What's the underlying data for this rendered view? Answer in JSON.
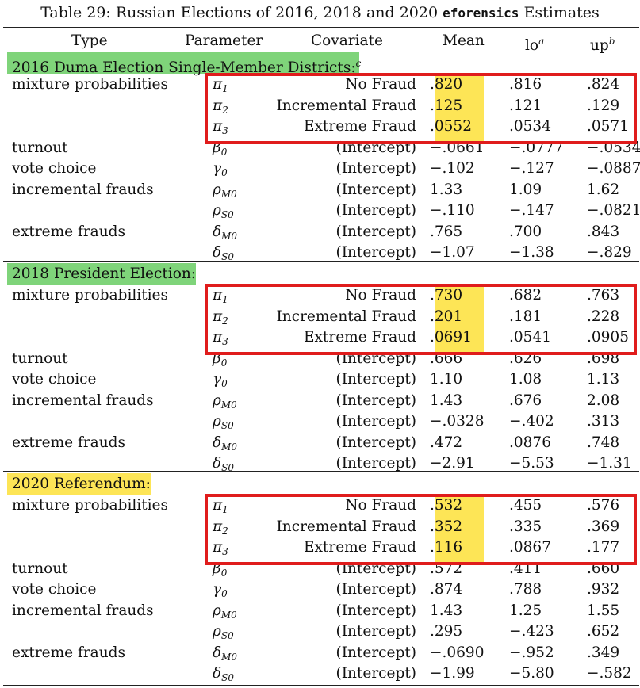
{
  "caption": {
    "prefix": "Table 29: Russian Elections of 2016, 2018 and 2020",
    "code": "eforensics",
    "suffix": "Estimates"
  },
  "headers": {
    "type": "Type",
    "parameter": "Parameter",
    "covariate": "Covariate",
    "mean": "Mean",
    "lo": "lo",
    "lo_sup": "a",
    "up": "up",
    "up_sup": "b"
  },
  "sections": [
    {
      "title": "2016 Duma Election Single-Member Districts:",
      "title_sup": "c",
      "highlight_color": "#7fd47a",
      "rows": [
        {
          "type": "mixture probabilities",
          "param": "π",
          "sub": "1",
          "cov": "No Fraud",
          "mean": ".820",
          "lo": ".816",
          "up": ".824"
        },
        {
          "type": "",
          "param": "π",
          "sub": "2",
          "cov": "Incremental Fraud",
          "mean": ".125",
          "lo": ".121",
          "up": ".129"
        },
        {
          "type": "",
          "param": "π",
          "sub": "3",
          "cov": "Extreme Fraud",
          "mean": ".0552",
          "lo": ".0534",
          "up": ".0571"
        },
        {
          "type": "turnout",
          "param": "β",
          "sub": "0",
          "cov": "(Intercept)",
          "mean": "−.0661",
          "lo": "−.0777",
          "up": "−.0534"
        },
        {
          "type": "vote choice",
          "param": "γ",
          "sub": "0",
          "cov": "(Intercept)",
          "mean": "−.102",
          "lo": "−.127",
          "up": "−.0887"
        },
        {
          "type": "incremental frauds",
          "param": "ρ",
          "sub": "M0",
          "cov": "(Intercept)",
          "mean": "1.33",
          "lo": "1.09",
          "up": "1.62"
        },
        {
          "type": "",
          "param": "ρ",
          "sub": "S0",
          "cov": "(Intercept)",
          "mean": "−.110",
          "lo": "−.147",
          "up": "−.0821"
        },
        {
          "type": "extreme frauds",
          "param": "δ",
          "sub": "M0",
          "cov": "(Intercept)",
          "mean": ".765",
          "lo": ".700",
          "up": ".843"
        },
        {
          "type": "",
          "param": "δ",
          "sub": "S0",
          "cov": "(Intercept)",
          "mean": "−1.07",
          "lo": "−1.38",
          "up": "−.829"
        }
      ]
    },
    {
      "title": "2018 President Election:",
      "title_sup": "",
      "highlight_color": "#7fd47a",
      "rows": [
        {
          "type": "mixture probabilities",
          "param": "π",
          "sub": "1",
          "cov": "No Fraud",
          "mean": ".730",
          "lo": ".682",
          "up": ".763"
        },
        {
          "type": "",
          "param": "π",
          "sub": "2",
          "cov": "Incremental Fraud",
          "mean": ".201",
          "lo": ".181",
          "up": ".228"
        },
        {
          "type": "",
          "param": "π",
          "sub": "3",
          "cov": "Extreme Fraud",
          "mean": ".0691",
          "lo": ".0541",
          "up": ".0905"
        },
        {
          "type": "turnout",
          "param": "β",
          "sub": "0",
          "cov": "(Intercept)",
          "mean": ".666",
          "lo": ".626",
          "up": ".698"
        },
        {
          "type": "vote choice",
          "param": "γ",
          "sub": "0",
          "cov": "(Intercept)",
          "mean": "1.10",
          "lo": "1.08",
          "up": "1.13"
        },
        {
          "type": "incremental frauds",
          "param": "ρ",
          "sub": "M0",
          "cov": "(Intercept)",
          "mean": "1.43",
          "lo": ".676",
          "up": "2.08"
        },
        {
          "type": "",
          "param": "ρ",
          "sub": "S0",
          "cov": "(Intercept)",
          "mean": "−.0328",
          "lo": "−.402",
          "up": ".313"
        },
        {
          "type": "extreme frauds",
          "param": "δ",
          "sub": "M0",
          "cov": "(Intercept)",
          "mean": ".472",
          "lo": ".0876",
          "up": ".748"
        },
        {
          "type": "",
          "param": "δ",
          "sub": "S0",
          "cov": "(Intercept)",
          "mean": "−2.91",
          "lo": "−5.53",
          "up": "−1.31"
        }
      ]
    },
    {
      "title": "2020 Referendum:",
      "title_sup": "",
      "highlight_color": "#fde556",
      "rows": [
        {
          "type": "mixture probabilities",
          "param": "π",
          "sub": "1",
          "cov": "No Fraud",
          "mean": ".532",
          "lo": ".455",
          "up": ".576"
        },
        {
          "type": "",
          "param": "π",
          "sub": "2",
          "cov": "Incremental Fraud",
          "mean": ".352",
          "lo": ".335",
          "up": ".369"
        },
        {
          "type": "",
          "param": "π",
          "sub": "3",
          "cov": "Extreme Fraud",
          "mean": ".116",
          "lo": ".0867",
          "up": ".177"
        },
        {
          "type": "turnout",
          "param": "β",
          "sub": "0",
          "cov": "(Intercept)",
          "mean": ".572",
          "lo": ".411",
          "up": ".660"
        },
        {
          "type": "vote choice",
          "param": "γ",
          "sub": "0",
          "cov": "(Intercept)",
          "mean": ".874",
          "lo": ".788",
          "up": ".932"
        },
        {
          "type": "incremental frauds",
          "param": "ρ",
          "sub": "M0",
          "cov": "(Intercept)",
          "mean": "1.43",
          "lo": "1.25",
          "up": "1.55"
        },
        {
          "type": "",
          "param": "ρ",
          "sub": "S0",
          "cov": "(Intercept)",
          "mean": ".295",
          "lo": "−.423",
          "up": ".652"
        },
        {
          "type": "extreme frauds",
          "param": "δ",
          "sub": "M0",
          "cov": "(Intercept)",
          "mean": "−.0690",
          "lo": "−.952",
          "up": ".349"
        },
        {
          "type": "",
          "param": "δ",
          "sub": "S0",
          "cov": "(Intercept)",
          "mean": "−1.99",
          "lo": "−5.80",
          "up": "−.582"
        }
      ]
    }
  ],
  "annotation_colors": {
    "mean_highlight": "#fde556",
    "box_outline": "#e01c1c"
  }
}
